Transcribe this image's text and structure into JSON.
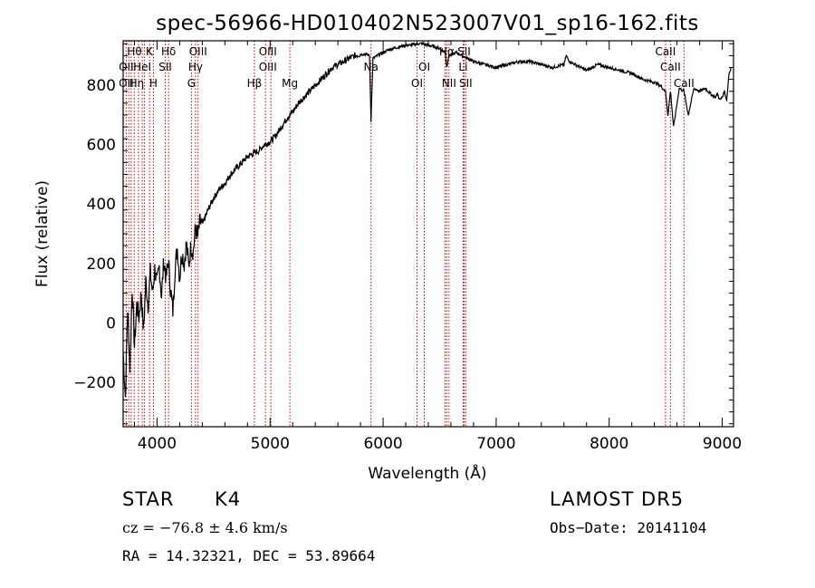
{
  "chart_data": {
    "type": "line",
    "title": "spec-56966-HD010402N523007V01_sp16-162.fits",
    "xlabel": "Wavelength (Å)",
    "ylabel": "Flux (relative)",
    "xlim": [
      3700,
      9100
    ],
    "ylim": [
      -350,
      950
    ],
    "x_ticks": [
      4000,
      5000,
      6000,
      7000,
      8000,
      9000
    ],
    "y_ticks": [
      -200,
      0,
      200,
      400,
      600,
      800
    ],
    "grid": false,
    "series": [
      {
        "x": [
          3700,
          3720,
          3740,
          3760,
          3780,
          3800,
          3820,
          3840,
          3860,
          3880,
          3900,
          3920,
          3940,
          3960,
          3980,
          4000,
          4020,
          4040,
          4060,
          4080,
          4100,
          4120,
          4140,
          4160,
          4180,
          4200,
          4220,
          4240,
          4260,
          4280,
          4300,
          4320,
          4340,
          4360,
          4380,
          4400,
          4450,
          4500,
          4550,
          4600,
          4650,
          4700,
          4750,
          4800,
          4850,
          4900,
          4950,
          5000,
          5050,
          5100,
          5150,
          5200,
          5250,
          5300,
          5350,
          5400,
          5450,
          5500,
          5550,
          5600,
          5650,
          5700,
          5750,
          5800,
          5850,
          5880,
          5893,
          5910,
          5950,
          6000,
          6050,
          6100,
          6150,
          6200,
          6250,
          6300,
          6350,
          6400,
          6450,
          6500,
          6550,
          6563,
          6580,
          6650,
          6700,
          6750,
          6800,
          6900,
          7000,
          7100,
          7200,
          7300,
          7400,
          7500,
          7600,
          7620,
          7650,
          7700,
          7800,
          7900,
          8000,
          8100,
          8200,
          8300,
          8400,
          8450,
          8498,
          8520,
          8542,
          8570,
          8620,
          8662,
          8700,
          8750,
          8800,
          8850,
          8900,
          8940,
          8960,
          8980,
          9000,
          9020,
          9040,
          9060,
          9080
        ],
        "y": [
          -100,
          -250,
          50,
          -150,
          120,
          -80,
          60,
          20,
          100,
          -30,
          140,
          60,
          170,
          100,
          180,
          130,
          190,
          90,
          210,
          150,
          210,
          110,
          40,
          190,
          250,
          150,
          240,
          200,
          270,
          190,
          260,
          240,
          320,
          290,
          340,
          330,
          380,
          420,
          450,
          470,
          500,
          520,
          540,
          560,
          570,
          580,
          600,
          610,
          630,
          660,
          690,
          710,
          740,
          760,
          780,
          800,
          820,
          840,
          860,
          870,
          880,
          890,
          900,
          905,
          905,
          900,
          680,
          890,
          900,
          910,
          920,
          925,
          930,
          935,
          935,
          940,
          940,
          935,
          930,
          925,
          910,
          860,
          900,
          910,
          900,
          890,
          880,
          870,
          860,
          870,
          880,
          880,
          870,
          860,
          870,
          900,
          880,
          870,
          850,
          870,
          860,
          850,
          840,
          820,
          810,
          800,
          780,
          700,
          780,
          660,
          790,
          780,
          700,
          790,
          780,
          790,
          770,
          760,
          770,
          750,
          760,
          780,
          750,
          840,
          860
        ]
      }
    ],
    "line_markers": [
      {
        "wavelength": 3727,
        "labels": [
          "OII"
        ]
      },
      {
        "wavelength": 3750,
        "labels": [
          "Hθ"
        ]
      },
      {
        "wavelength": 3771,
        "labels": [
          "Hη"
        ]
      },
      {
        "wavelength": 3798,
        "labels": [
          "Hθ"
        ]
      },
      {
        "wavelength": 3835,
        "labels": [
          "Hη"
        ]
      },
      {
        "wavelength": 3869,
        "labels": [
          "HeI"
        ]
      },
      {
        "wavelength": 3889,
        "labels": [
          "HeI"
        ]
      },
      {
        "wavelength": 3934,
        "labels": [
          "K"
        ]
      },
      {
        "wavelength": 3968,
        "labels": [
          "H"
        ]
      },
      {
        "wavelength": 4072,
        "labels": [
          "SII"
        ]
      },
      {
        "wavelength": 4102,
        "labels": [
          "Hδ"
        ]
      },
      {
        "wavelength": 4304,
        "labels": [
          "G"
        ]
      },
      {
        "wavelength": 4340,
        "labels": [
          "Hγ"
        ]
      },
      {
        "wavelength": 4363,
        "labels": [
          "OIII"
        ]
      },
      {
        "wavelength": 4861,
        "labels": [
          "Hβ"
        ]
      },
      {
        "wavelength": 4959,
        "labels": [
          "OIII"
        ]
      },
      {
        "wavelength": 5007,
        "labels": [
          "OIII"
        ]
      },
      {
        "wavelength": 5175,
        "labels": [
          "Mg"
        ]
      },
      {
        "wavelength": 5893,
        "labels": [
          "Na"
        ]
      },
      {
        "wavelength": 6300,
        "labels": [
          "OI"
        ]
      },
      {
        "wavelength": 6364,
        "labels": [
          "OI"
        ]
      },
      {
        "wavelength": 6548,
        "labels": [
          "NII"
        ]
      },
      {
        "wavelength": 6563,
        "labels": [
          "Hα"
        ]
      },
      {
        "wavelength": 6583,
        "labels": [
          "NII"
        ]
      },
      {
        "wavelength": 6708,
        "labels": [
          "Li"
        ]
      },
      {
        "wavelength": 6716,
        "labels": [
          "SII"
        ]
      },
      {
        "wavelength": 6731,
        "labels": [
          "SII"
        ]
      },
      {
        "wavelength": 8498,
        "labels": [
          "CaII"
        ]
      },
      {
        "wavelength": 8542,
        "labels": [
          "CaII"
        ]
      },
      {
        "wavelength": 8662,
        "labels": [
          "CaII"
        ]
      }
    ],
    "marker_texts": [
      {
        "text": "Hθ",
        "wl": 3800,
        "row": 1
      },
      {
        "text": "K",
        "wl": 3932,
        "row": 1
      },
      {
        "text": "Hδ",
        "wl": 4102,
        "row": 1
      },
      {
        "text": "OIII",
        "wl": 4363,
        "row": 1
      },
      {
        "text": "OIII",
        "wl": 4980,
        "row": 1
      },
      {
        "text": "Hα",
        "wl": 6563,
        "row": 1
      },
      {
        "text": "SII",
        "wl": 6716,
        "row": 1
      },
      {
        "text": "CaII",
        "wl": 8498,
        "row": 1
      },
      {
        "text": "OII",
        "wl": 3727,
        "row": 2
      },
      {
        "text": "HeI",
        "wl": 3869,
        "row": 2
      },
      {
        "text": "SII",
        "wl": 4072,
        "row": 2
      },
      {
        "text": "Hγ",
        "wl": 4340,
        "row": 2
      },
      {
        "text": "OIII",
        "wl": 4980,
        "row": 2
      },
      {
        "text": "Na",
        "wl": 5893,
        "row": 2
      },
      {
        "text": "Li",
        "wl": 6708,
        "row": 2
      },
      {
        "text": "CaII",
        "wl": 8542,
        "row": 2
      },
      {
        "text": "OI",
        "wl": 6364,
        "row": 2
      },
      {
        "text": "OII",
        "wl": 3727,
        "row": 3
      },
      {
        "text": "Hη",
        "wl": 3820,
        "row": 3
      },
      {
        "text": "H",
        "wl": 3968,
        "row": 3
      },
      {
        "text": "G",
        "wl": 4304,
        "row": 3
      },
      {
        "text": "Hβ",
        "wl": 4861,
        "row": 3
      },
      {
        "text": "Mg",
        "wl": 5175,
        "row": 3
      },
      {
        "text": "OI",
        "wl": 6300,
        "row": 3
      },
      {
        "text": "NII",
        "wl": 6583,
        "row": 3
      },
      {
        "text": "SII",
        "wl": 6731,
        "row": 3
      },
      {
        "text": "CaII",
        "wl": 8662,
        "row": 3
      }
    ],
    "line_color": "#000000",
    "marker_color": "#cc0000"
  },
  "info": {
    "object_class": "STAR",
    "subclass": "K4",
    "survey": "LAMOST DR5",
    "cz": "cz = −76.8 ± 4.6 km/s",
    "obs_date": "Obs−Date: 20141104",
    "coords": "RA =  14.32321, DEC =  53.89664"
  }
}
